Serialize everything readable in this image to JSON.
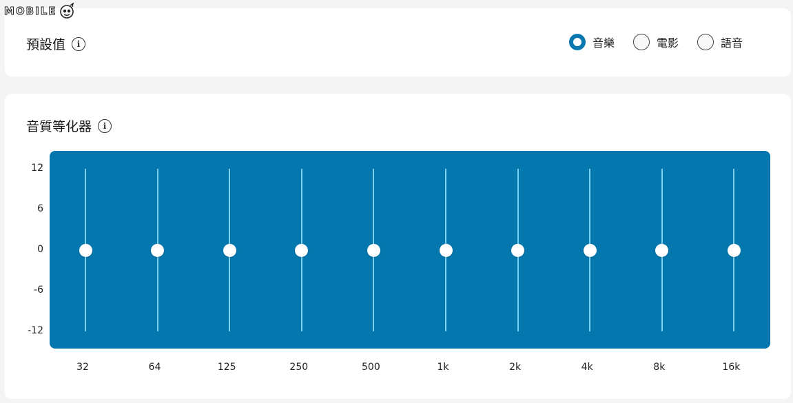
{
  "watermark": {
    "text": "MOBILE"
  },
  "preset": {
    "title": "預設值",
    "options": [
      {
        "label": "音樂",
        "selected": true
      },
      {
        "label": "電影",
        "selected": false
      },
      {
        "label": "語音",
        "selected": false
      }
    ]
  },
  "equalizer": {
    "title": "音質等化器",
    "y_ticks": [
      "12",
      "6",
      "0",
      "-6",
      "-12"
    ],
    "y_range": [
      -12,
      12
    ],
    "bands": [
      {
        "label": "32",
        "value": 0
      },
      {
        "label": "64",
        "value": 0
      },
      {
        "label": "125",
        "value": 0
      },
      {
        "label": "250",
        "value": 0
      },
      {
        "label": "500",
        "value": 0
      },
      {
        "label": "1k",
        "value": 0
      },
      {
        "label": "2k",
        "value": 0
      },
      {
        "label": "4k",
        "value": 0
      },
      {
        "label": "8k",
        "value": 0
      },
      {
        "label": "16k",
        "value": 0
      }
    ]
  },
  "colors": {
    "accent": "#0a78b0",
    "panel": "#0478ae",
    "track": "#7fd1f2"
  }
}
